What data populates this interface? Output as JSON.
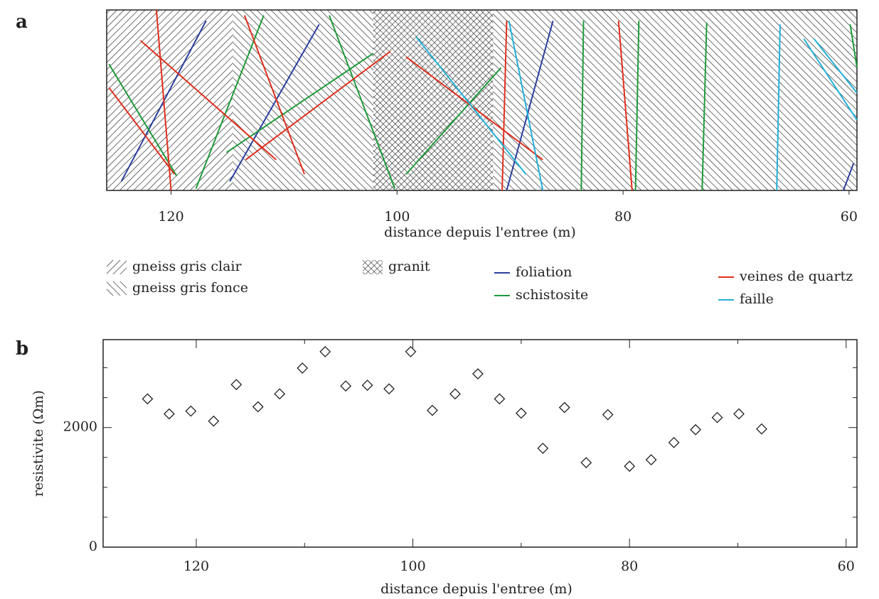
{
  "chart_data": [
    {
      "type": "section",
      "panel": "a",
      "xlabel": "distance depuis l'entree (m)",
      "xlim": [
        125.7,
        59.3
      ],
      "xticks": [
        120,
        100,
        80,
        60
      ],
      "ylim": [
        0,
        1
      ],
      "zones": [
        {
          "name": "gneiss gris clair",
          "hatch": "forward",
          "start": 125.7,
          "end": 114.5
        },
        {
          "name": "gneiss gris fonce",
          "hatch": "backward",
          "start": 114.5,
          "end": 102.1
        },
        {
          "name": "granit",
          "hatch": "cross",
          "start": 102.1,
          "end": 91.5
        },
        {
          "name": null,
          "hatch": "backward",
          "start": 91.5,
          "end": 59.3
        }
      ],
      "series": [
        {
          "name": "foliation",
          "color": "#2b3f9e",
          "segments": [
            [
              116.9,
              0.94,
              124.4,
              0.05
            ],
            [
              106.9,
              0.92,
              114.8,
              0.05
            ],
            [
              86.2,
              0.94,
              90.3,
              0
            ],
            [
              59.6,
              0.15,
              60.5,
              0
            ]
          ]
        },
        {
          "name": "schistosite",
          "color": "#1f9a3a",
          "segments": [
            [
              125.5,
              0.7,
              119.5,
              0.08
            ],
            [
              111.8,
              0.97,
              117.8,
              0.01
            ],
            [
              106.0,
              0.97,
              100.2,
              0.01
            ],
            [
              99.2,
              0.09,
              90.8,
              0.68
            ],
            [
              102.1,
              0.76,
              115.1,
              0.21
            ],
            [
              83.5,
              0.94,
              83.7,
              0
            ],
            [
              78.6,
              0.94,
              78.9,
              0
            ],
            [
              72.6,
              0.93,
              73.0,
              0
            ],
            [
              59.9,
              0.92,
              59.3,
              0.68
            ]
          ]
        },
        {
          "name": "veines de quartz",
          "color": "#e0301e",
          "segments": [
            [
              121.3,
              1.0,
              120.0,
              0
            ],
            [
              122.7,
              0.83,
              110.7,
              0.17
            ],
            [
              125.5,
              0.57,
              119.7,
              0.09
            ],
            [
              113.5,
              0.97,
              108.2,
              0.09
            ],
            [
              100.6,
              0.77,
              113.4,
              0.17
            ],
            [
              99.2,
              0.74,
              87.1,
              0.17
            ],
            [
              90.3,
              0.94,
              90.7,
              0
            ],
            [
              80.4,
              0.94,
              79.2,
              0
            ]
          ]
        },
        {
          "name": "faille",
          "color": "#22b0d8",
          "segments": [
            [
              98.3,
              0.85,
              88.6,
              0.09
            ],
            [
              90.1,
              0.94,
              87.1,
              0
            ],
            [
              66.1,
              0.92,
              66.4,
              0
            ],
            [
              64.0,
              0.84,
              59.3,
              0.39
            ],
            [
              63.1,
              0.84,
              59.3,
              0.54
            ]
          ]
        }
      ]
    },
    {
      "type": "scatter",
      "panel": "b",
      "xlabel": "distance depuis l'entree (m)",
      "ylabel": "resistivite (Ωm)",
      "xlim": [
        128.6,
        59
      ],
      "xticks": [
        120,
        100,
        80,
        60
      ],
      "xminor_ticks": [
        110,
        90,
        70
      ],
      "ylim": [
        0,
        3470
      ],
      "yticks": [
        0,
        2000
      ],
      "yminor_ticks": [
        500,
        1000,
        1500,
        2500,
        3000
      ],
      "x": [
        124.5,
        122.5,
        120.5,
        118.4,
        116.3,
        114.3,
        112.3,
        110.2,
        108.1,
        106.2,
        104.2,
        102.2,
        100.2,
        98.2,
        96.1,
        94.0,
        92.0,
        90.0,
        88.0,
        86.0,
        84.0,
        82.0,
        80.0,
        78.0,
        75.9,
        73.9,
        71.9,
        69.9,
        67.8
      ],
      "values": [
        2479,
        2228,
        2275,
        2108,
        2719,
        2347,
        2563,
        2994,
        3269,
        2695,
        2707,
        2647,
        3269,
        2287,
        2563,
        2898,
        2479,
        2240,
        1653,
        2335,
        1413,
        2216,
        1353,
        1461,
        1749,
        1964,
        2168,
        2228,
        1976
      ]
    }
  ]
}
